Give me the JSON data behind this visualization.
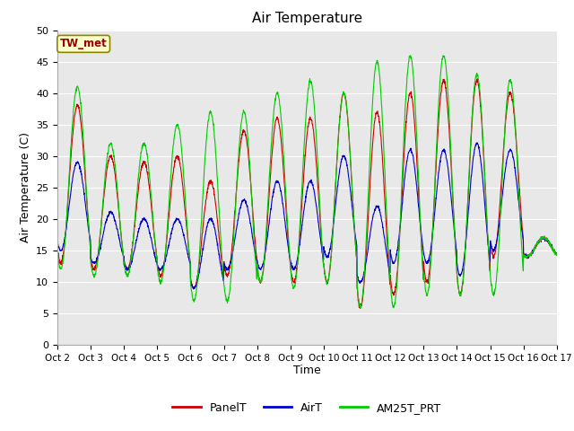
{
  "title": "Air Temperature",
  "ylabel": "Air Temperature (C)",
  "xlabel": "Time",
  "ylim": [
    0,
    50
  ],
  "yticks": [
    0,
    5,
    10,
    15,
    20,
    25,
    30,
    35,
    40,
    45,
    50
  ],
  "station_label": "TW_met",
  "fig_bg_color": "#ffffff",
  "plot_bg_color": "#e8e8e8",
  "grid_color": "#ffffff",
  "legend_entries": [
    "PanelT",
    "AirT",
    "AM25T_PRT"
  ],
  "line_colors": {
    "PanelT": "#cc0000",
    "AirT": "#0000cc",
    "AM25T_PRT": "#00cc00"
  },
  "start_day": 2,
  "end_day": 17,
  "num_days": 15,
  "points_per_day": 144,
  "daily_max_panel": [
    38,
    30,
    29,
    30,
    26,
    34,
    36,
    36,
    40,
    37,
    40,
    42,
    42,
    40,
    17
  ],
  "daily_min_panel": [
    13,
    12,
    12,
    11,
    9,
    11,
    10,
    10,
    10,
    6,
    8,
    10,
    8,
    14,
    14
  ],
  "daily_max_air": [
    29,
    21,
    20,
    20,
    20,
    23,
    26,
    26,
    30,
    22,
    31,
    31,
    32,
    31,
    17
  ],
  "daily_min_air": [
    15,
    13,
    12,
    12,
    9,
    12,
    12,
    12,
    14,
    10,
    13,
    13,
    11,
    15,
    14
  ],
  "daily_max_am25": [
    41,
    32,
    32,
    35,
    37,
    37,
    40,
    42,
    40,
    45,
    46,
    46,
    43,
    42,
    17
  ],
  "daily_min_am25": [
    12,
    11,
    11,
    10,
    7,
    7,
    10,
    9,
    10,
    6,
    6,
    8,
    8,
    8,
    14
  ],
  "figsize": [
    6.4,
    4.8
  ],
  "dpi": 100
}
